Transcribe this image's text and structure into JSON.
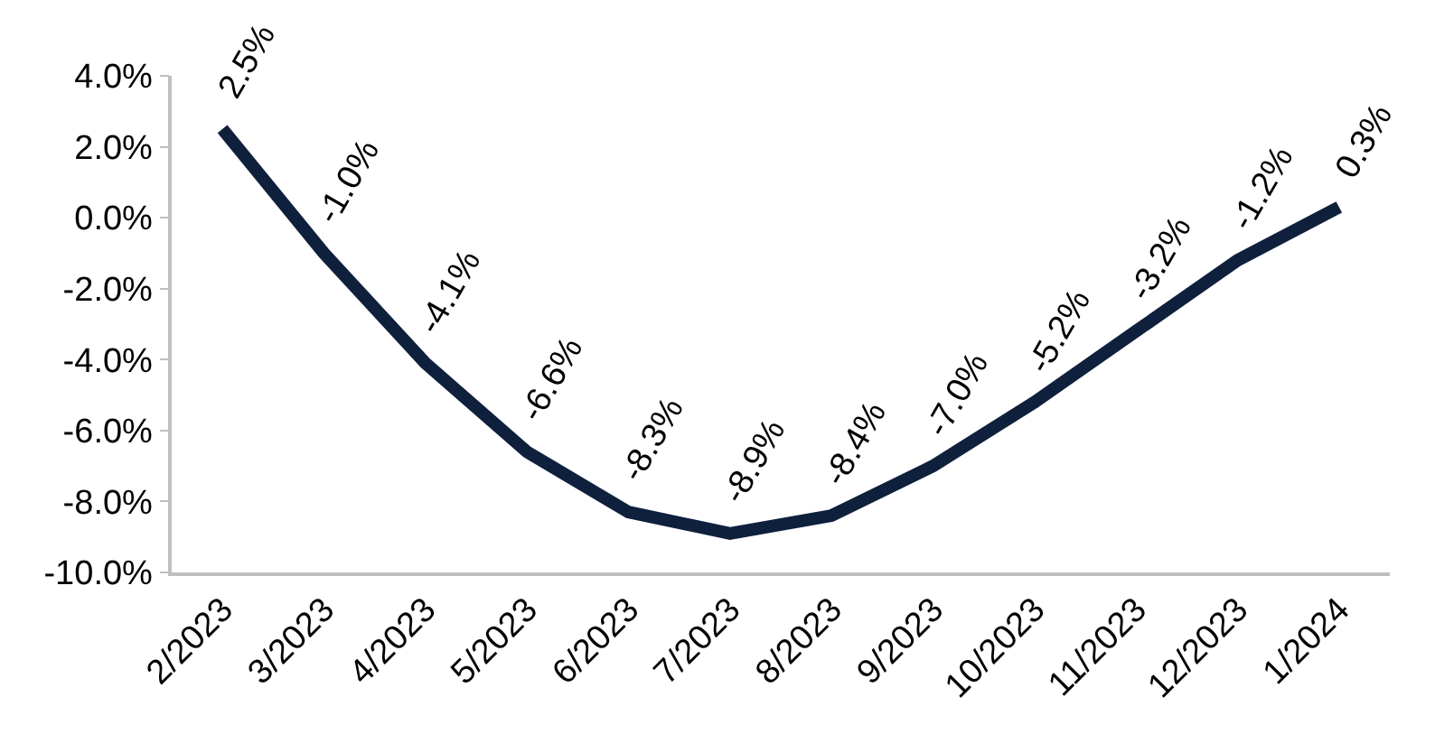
{
  "chart_data": {
    "type": "line",
    "categories": [
      "2/2023",
      "3/2023",
      "4/2023",
      "5/2023",
      "6/2023",
      "7/2023",
      "8/2023",
      "9/2023",
      "10/2023",
      "11/2023",
      "12/2023",
      "1/2024"
    ],
    "series": [
      {
        "color": "#0f203d",
        "values": [
          2.5,
          -1.0,
          -4.1,
          -6.6,
          -8.3,
          -8.9,
          -8.4,
          -7.0,
          -5.2,
          -3.2,
          -1.2,
          0.3
        ],
        "value_labels": [
          "2.5%",
          "-1.0%",
          "-4.1%",
          "-6.6%",
          "-8.3%",
          "-8.9%",
          "-8.4%",
          "-7.0%",
          "-5.2%",
          "-3.2%",
          "-1.2%",
          "0.3%"
        ]
      }
    ],
    "ylim": [
      -10,
      4
    ],
    "yticks": [
      {
        "value": -10,
        "label": "-10.0%"
      },
      {
        "value": -8,
        "label": "-8.0%"
      },
      {
        "value": -6,
        "label": "-6.0%"
      },
      {
        "value": -4,
        "label": "-4.0%"
      },
      {
        "value": -2,
        "label": "-2.0%"
      },
      {
        "value": 0,
        "label": "0.0%"
      },
      {
        "value": 2,
        "label": "2.0%"
      },
      {
        "value": 4,
        "label": "4.0%"
      }
    ],
    "grid": false,
    "marker": "none",
    "line_style": "solid"
  }
}
